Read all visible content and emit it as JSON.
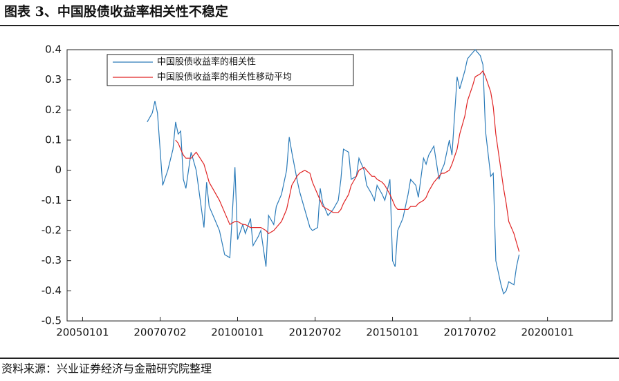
{
  "chart_data": {
    "type": "line",
    "title": "图表 3、中国股债收益率相关性不稳定",
    "source": "资料来源：兴业证券经济与金融研究院整理",
    "x": [
      "2007-02",
      "2007-04",
      "2007-05",
      "2007-06",
      "2007-08",
      "2007-10",
      "2007-12",
      "2008-01",
      "2008-02",
      "2008-03",
      "2008-04",
      "2008-05",
      "2008-07",
      "2008-08",
      "2008-09",
      "2008-12",
      "2009-01",
      "2009-02",
      "2009-04",
      "2009-06",
      "2009-08",
      "2009-10",
      "2009-12",
      "2010-01",
      "2010-03",
      "2010-04",
      "2010-06",
      "2010-07",
      "2010-09",
      "2010-10",
      "2010-12",
      "2011-01",
      "2011-03",
      "2011-04",
      "2011-06",
      "2011-08",
      "2011-09",
      "2011-10",
      "2011-12",
      "2012-01",
      "2012-03",
      "2012-05",
      "2012-06",
      "2012-08",
      "2012-09",
      "2012-10",
      "2012-12",
      "2013-02",
      "2013-04",
      "2013-05",
      "2013-06",
      "2013-08",
      "2013-09",
      "2013-11",
      "2013-12",
      "2014-02",
      "2014-03",
      "2014-05",
      "2014-06",
      "2014-07",
      "2014-09",
      "2014-10",
      "2014-12",
      "2015-01",
      "2015-02",
      "2015-03",
      "2015-05",
      "2015-07",
      "2015-08",
      "2015-10",
      "2015-11",
      "2016-01",
      "2016-02",
      "2016-03",
      "2016-05",
      "2016-07",
      "2016-08",
      "2016-09",
      "2016-11",
      "2016-12",
      "2017-02",
      "2017-03",
      "2017-05",
      "2017-06",
      "2017-08",
      "2017-09",
      "2017-11",
      "2017-12",
      "2018-01",
      "2018-03",
      "2018-04",
      "2018-05",
      "2018-07",
      "2018-08",
      "2018-09",
      "2018-10",
      "2018-12",
      "2019-01",
      "2019-02"
    ],
    "series": [
      {
        "name": "中国股债收益率的相关性",
        "color": "#2b7bb9",
        "values": [
          0.16,
          0.19,
          0.23,
          0.19,
          -0.05,
          0.0,
          0.07,
          0.16,
          0.12,
          0.13,
          -0.03,
          -0.06,
          0.06,
          0.03,
          0.0,
          -0.19,
          -0.04,
          -0.12,
          -0.16,
          -0.2,
          -0.28,
          -0.29,
          0.01,
          -0.23,
          -0.18,
          -0.21,
          -0.16,
          -0.25,
          -0.22,
          -0.2,
          -0.32,
          -0.15,
          -0.18,
          -0.12,
          -0.08,
          0.0,
          0.11,
          0.06,
          -0.03,
          -0.07,
          -0.13,
          -0.19,
          -0.2,
          -0.19,
          -0.06,
          -0.11,
          -0.15,
          -0.13,
          -0.1,
          -0.03,
          0.07,
          0.06,
          -0.03,
          -0.02,
          0.04,
          0.0,
          -0.05,
          -0.08,
          -0.1,
          -0.05,
          -0.08,
          -0.1,
          -0.03,
          -0.3,
          -0.32,
          -0.2,
          -0.16,
          -0.08,
          -0.03,
          -0.05,
          -0.09,
          0.04,
          0.02,
          0.05,
          0.08,
          -0.03,
          0.0,
          0.02,
          0.1,
          0.05,
          0.31,
          0.27,
          0.33,
          0.37,
          0.39,
          0.4,
          0.38,
          0.35,
          0.13,
          -0.02,
          -0.01,
          -0.3,
          -0.38,
          -0.41,
          -0.4,
          -0.37,
          -0.38,
          -0.32,
          -0.28
        ]
      },
      {
        "name": "中国股债收益率的相关性移动平均",
        "color": "#e02424",
        "values": [
          null,
          null,
          null,
          null,
          null,
          null,
          null,
          0.1,
          0.09,
          0.07,
          0.05,
          0.04,
          0.04,
          0.05,
          0.06,
          0.02,
          -0.01,
          -0.04,
          -0.07,
          -0.1,
          -0.14,
          -0.18,
          -0.17,
          -0.17,
          -0.18,
          -0.18,
          -0.19,
          -0.19,
          -0.19,
          -0.19,
          -0.2,
          -0.21,
          -0.2,
          -0.19,
          -0.17,
          -0.13,
          -0.09,
          -0.05,
          -0.02,
          -0.01,
          0.0,
          -0.01,
          -0.04,
          -0.08,
          -0.1,
          -0.12,
          -0.13,
          -0.14,
          -0.14,
          -0.13,
          -0.11,
          -0.08,
          -0.05,
          -0.02,
          0.0,
          0.01,
          0.0,
          -0.02,
          -0.02,
          -0.03,
          -0.04,
          -0.05,
          -0.08,
          -0.1,
          -0.12,
          -0.13,
          -0.13,
          -0.13,
          -0.12,
          -0.12,
          -0.11,
          -0.1,
          -0.09,
          -0.07,
          -0.04,
          -0.02,
          -0.01,
          -0.01,
          0.0,
          0.02,
          0.07,
          0.12,
          0.18,
          0.23,
          0.28,
          0.31,
          0.32,
          0.33,
          0.31,
          0.26,
          0.21,
          0.12,
          0.0,
          -0.06,
          -0.11,
          -0.17,
          -0.21,
          -0.24,
          -0.27
        ]
      }
    ],
    "xlim": [
      "2004-07-01",
      "2022-02-01"
    ],
    "xticks": [
      {
        "value": "2005-01-01",
        "label": "20050101"
      },
      {
        "value": "2007-07-02",
        "label": "20070702"
      },
      {
        "value": "2010-01-01",
        "label": "20100101"
      },
      {
        "value": "2012-07-02",
        "label": "20120702"
      },
      {
        "value": "2015-01-01",
        "label": "20150101"
      },
      {
        "value": "2017-07-02",
        "label": "20170702"
      },
      {
        "value": "2020-01-01",
        "label": "20200101"
      }
    ],
    "ylim": [
      -0.5,
      0.4
    ],
    "yticks": [
      -0.5,
      -0.4,
      -0.3,
      -0.2,
      -0.1,
      0,
      0.1,
      0.2,
      0.3,
      0.4
    ],
    "grid": false,
    "legend": "top-left"
  }
}
